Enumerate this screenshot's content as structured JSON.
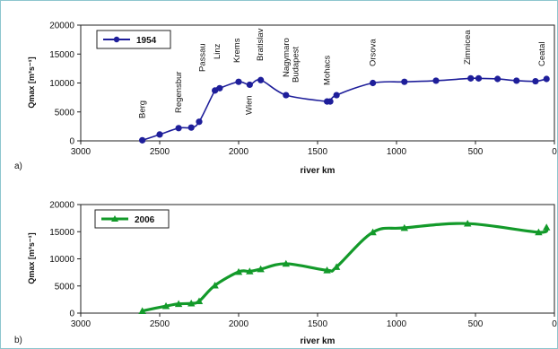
{
  "chart_data": [
    {
      "type": "line",
      "panel_label": "a)",
      "ylabel": "Qmax [m³s⁻¹]",
      "xlabel": "river km",
      "xlim": [
        3000,
        0
      ],
      "ylim": [
        0,
        20000
      ],
      "x_reversed": true,
      "xticks": [
        3000,
        2500,
        2000,
        1500,
        1000,
        500,
        0
      ],
      "yticks": [
        0,
        5000,
        10000,
        15000,
        20000
      ],
      "grid": false,
      "legend_position": "top-left",
      "series": [
        {
          "name": "1954",
          "color": "#1e1e9a",
          "marker": "circle",
          "x": [
            2610,
            2500,
            2380,
            2300,
            2250,
            2150,
            2120,
            2000,
            1930,
            1860,
            1700,
            1440,
            1420,
            1380,
            1150,
            950,
            750,
            530,
            480,
            360,
            240,
            120,
            50
          ],
          "y": [
            100,
            1100,
            2200,
            2300,
            3300,
            8700,
            9100,
            10200,
            9700,
            10500,
            7900,
            6800,
            6800,
            7900,
            10000,
            10200,
            10400,
            10800,
            10800,
            10700,
            10400,
            10300,
            10700
          ]
        }
      ],
      "annotations": [
        {
          "text": "Berg",
          "x": 2610
        },
        {
          "text": "Regensbur",
          "x": 2380
        },
        {
          "text": "Passau",
          "x": 2230
        },
        {
          "text": "Linz",
          "x": 2135
        },
        {
          "text": "Krems",
          "x": 2010
        },
        {
          "text": "Wien",
          "x": 1935
        },
        {
          "text": "Bratislav",
          "x": 1865
        },
        {
          "text": "Nagymaro",
          "x": 1700
        },
        {
          "text": "Budapest",
          "x": 1640
        },
        {
          "text": "Mohacs",
          "x": 1440
        },
        {
          "text": "Orsova",
          "x": 1150
        },
        {
          "text": "Zimnicea",
          "x": 550
        },
        {
          "text": "Ceatal",
          "x": 80
        }
      ]
    },
    {
      "type": "line",
      "panel_label": "b)",
      "ylabel": "Qmax [m³s⁻¹]",
      "xlabel": "river km",
      "xlim": [
        3000,
        0
      ],
      "ylim": [
        0,
        20000
      ],
      "x_reversed": true,
      "xticks": [
        3000,
        2500,
        2000,
        1500,
        1000,
        500,
        0
      ],
      "yticks": [
        0,
        5000,
        10000,
        15000,
        20000
      ],
      "grid": false,
      "legend_position": "top-left",
      "series": [
        {
          "name": "2006",
          "color": "#139a2a",
          "marker": "triangle",
          "x": [
            2610,
            2460,
            2380,
            2300,
            2250,
            2150,
            2000,
            1930,
            1860,
            1700,
            1440,
            1380,
            1150,
            950,
            550,
            100,
            50
          ],
          "y": [
            400,
            1300,
            1700,
            1800,
            2200,
            5100,
            7600,
            7700,
            8100,
            9100,
            7900,
            8500,
            14900,
            15700,
            16500,
            14900,
            15800
          ]
        }
      ],
      "annotations": []
    }
  ]
}
